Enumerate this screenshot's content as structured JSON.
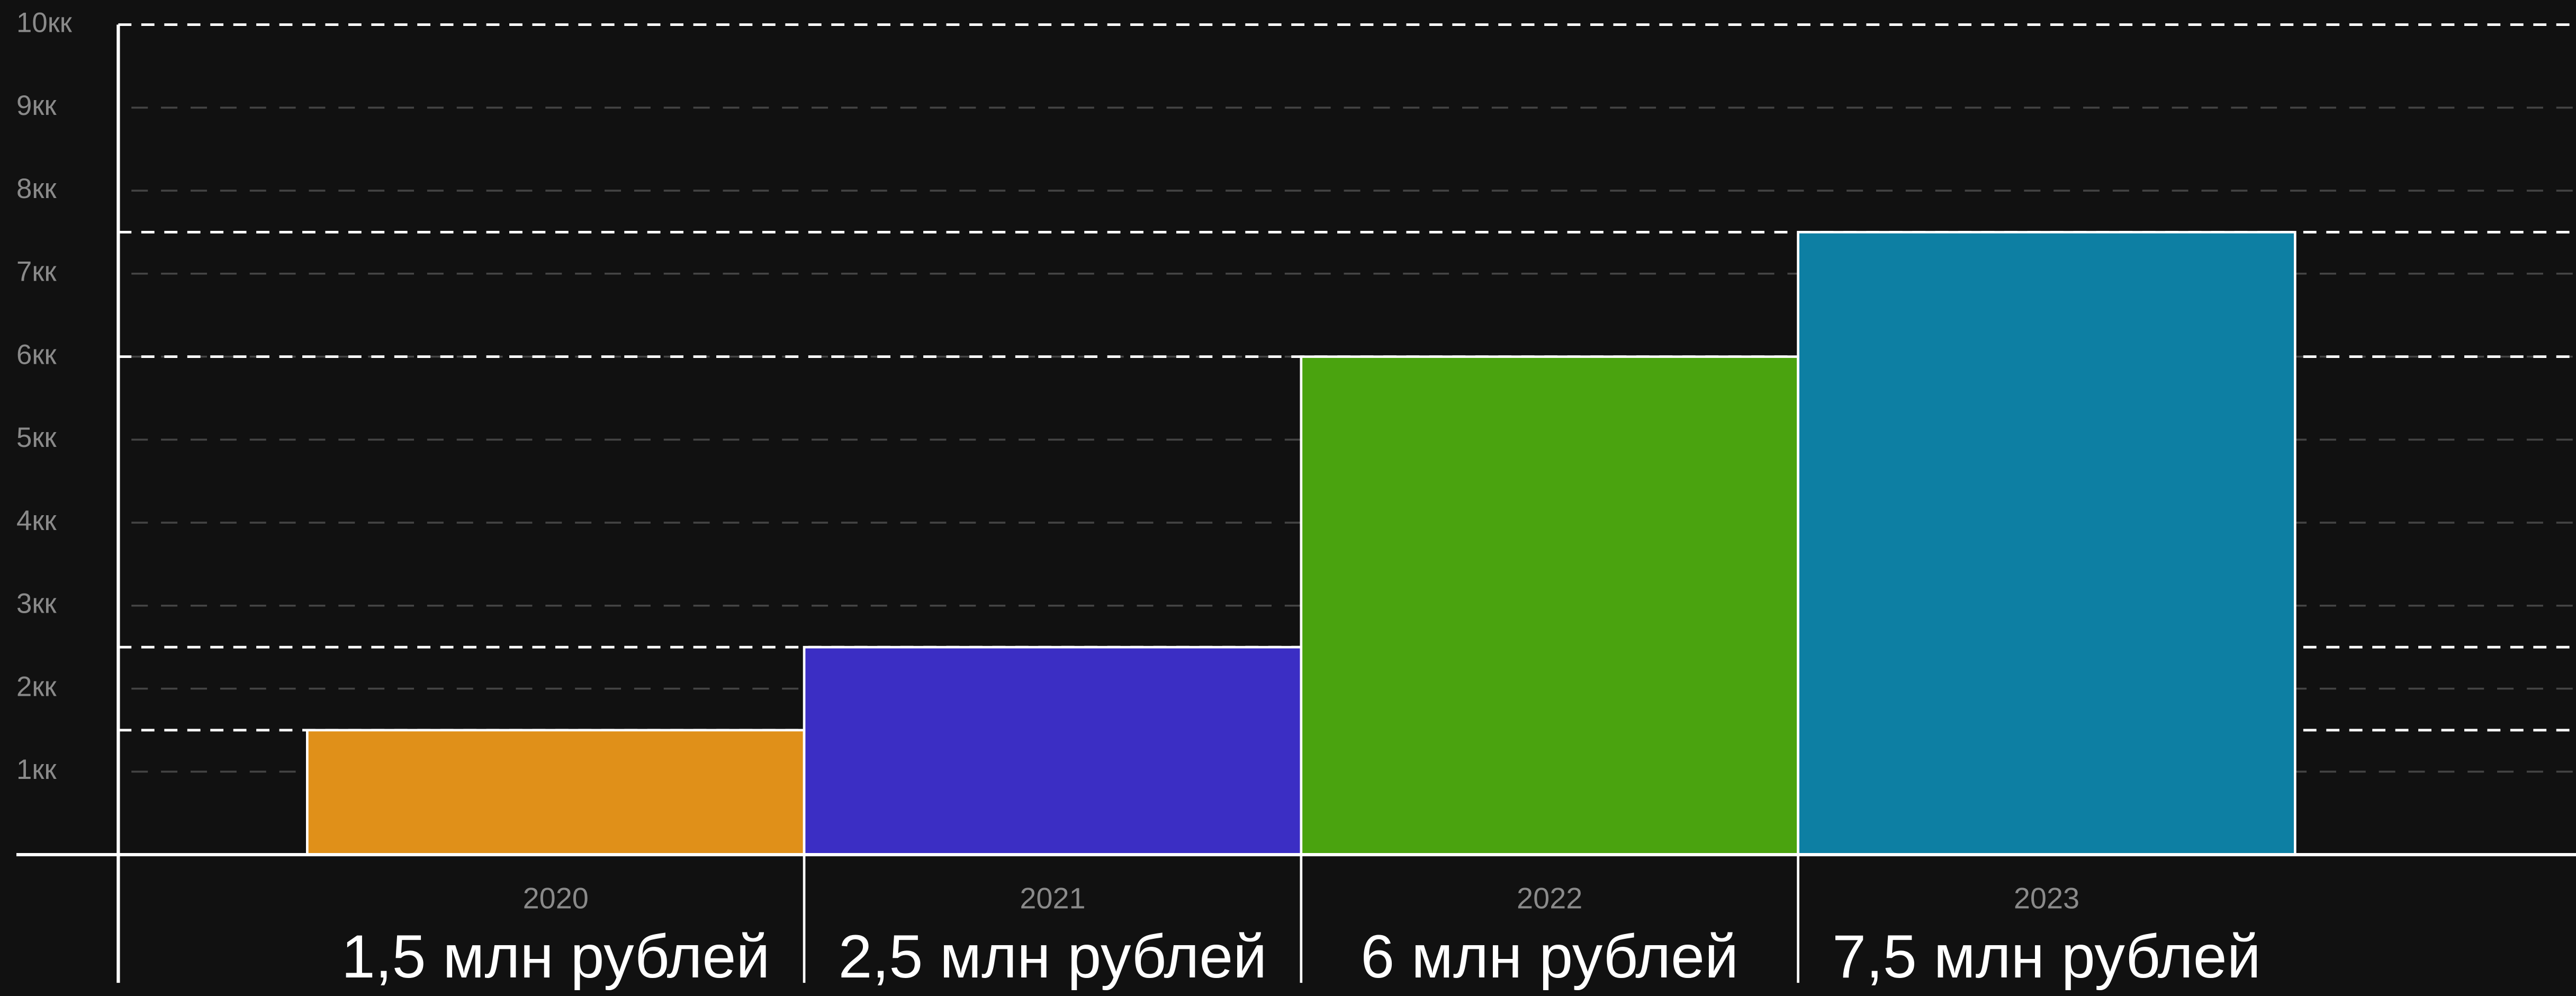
{
  "chart_data": {
    "type": "bar",
    "categories": [
      "2020",
      "2021",
      "2022",
      "2023"
    ],
    "values": [
      1.5,
      2.5,
      6,
      7.5
    ],
    "value_labels": [
      "1,5 млн рублей",
      "2,5 млн рублей",
      "6 млн рублей",
      "7,5 млн рублей"
    ],
    "colors": [
      "#e09019",
      "#3b2ec4",
      "#4aa30f",
      "#0d7fa3"
    ],
    "ylim": [
      0,
      10
    ],
    "yticks": [
      {
        "value": 1,
        "label": "1кк"
      },
      {
        "value": 2,
        "label": "2кк"
      },
      {
        "value": 3,
        "label": "3кк"
      },
      {
        "value": 4,
        "label": "4кк"
      },
      {
        "value": 5,
        "label": "5кк"
      },
      {
        "value": 6,
        "label": "6кк"
      },
      {
        "value": 7,
        "label": "7кк"
      },
      {
        "value": 8,
        "label": "8кк"
      },
      {
        "value": 9,
        "label": "9кк"
      },
      {
        "value": 10,
        "label": "10кк"
      }
    ],
    "grid": true
  }
}
